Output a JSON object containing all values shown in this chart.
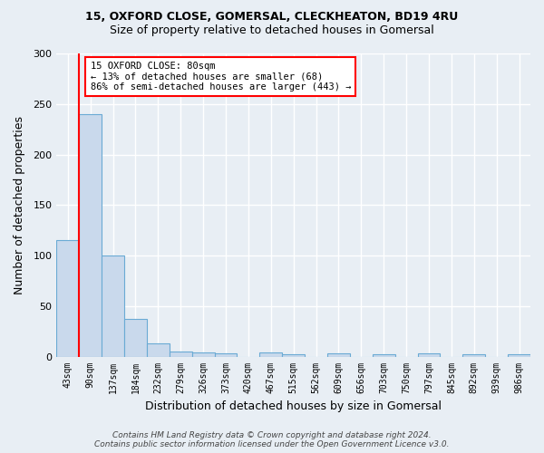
{
  "title_line1": "15, OXFORD CLOSE, GOMERSAL, CLECKHEATON, BD19 4RU",
  "title_line2": "Size of property relative to detached houses in Gomersal",
  "xlabel": "Distribution of detached houses by size in Gomersal",
  "ylabel": "Number of detached properties",
  "bar_labels": [
    "43sqm",
    "90sqm",
    "137sqm",
    "184sqm",
    "232sqm",
    "279sqm",
    "326sqm",
    "373sqm",
    "420sqm",
    "467sqm",
    "515sqm",
    "562sqm",
    "609sqm",
    "656sqm",
    "703sqm",
    "750sqm",
    "797sqm",
    "845sqm",
    "892sqm",
    "939sqm",
    "986sqm"
  ],
  "bar_values": [
    115,
    240,
    100,
    37,
    13,
    5,
    4,
    3,
    0,
    4,
    2,
    0,
    3,
    0,
    2,
    0,
    3,
    0,
    2,
    0,
    2
  ],
  "bar_color": "#c9d9ec",
  "bar_edge_color": "#6aaad4",
  "ylim": [
    0,
    300
  ],
  "yticks": [
    0,
    50,
    100,
    150,
    200,
    250,
    300
  ],
  "annotation_text": "15 OXFORD CLOSE: 80sqm\n← 13% of detached houses are smaller (68)\n86% of semi-detached houses are larger (443) →",
  "annotation_box_color": "white",
  "annotation_box_edge_color": "red",
  "vline_color": "red",
  "vline_x": 1,
  "footer_line1": "Contains HM Land Registry data © Crown copyright and database right 2024.",
  "footer_line2": "Contains public sector information licensed under the Open Government Licence v3.0.",
  "bg_color": "#e8eef4",
  "grid_color": "white",
  "title_fontsize": 9,
  "subtitle_fontsize": 9,
  "axis_label_fontsize": 8,
  "tick_fontsize": 7,
  "footer_fontsize": 6.5
}
